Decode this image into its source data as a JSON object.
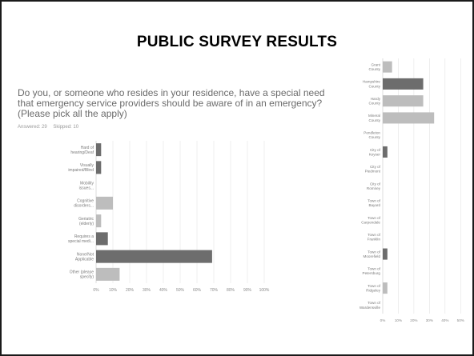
{
  "slide": {
    "title": "PUBLIC SURVEY RESULTS",
    "question": "Do you, or someone who resides in your residence, have a special need that emergency service providers should be aware of in an emergency? (Please pick all the apply)",
    "answered": "Answered: 29",
    "skipped": "Skipped: 10"
  },
  "chart_data": [
    {
      "type": "bar",
      "orientation": "horizontal",
      "categories": [
        "Hard of hearing/Deaf",
        "Visually impaired/Blind",
        "Mobility issues...",
        "Cognitive disorders...",
        "Geriatric (elderly)",
        "Requires a special medi...",
        "None/Not Applicable",
        "Other (please specify)"
      ],
      "values": [
        3,
        3,
        0,
        10,
        3,
        7,
        69,
        14
      ],
      "bar_colors": [
        "#6d6d6d",
        "#6d6d6d",
        "#6d6d6d",
        "#bdbdbd",
        "#bdbdbd",
        "#6d6d6d",
        "#6d6d6d",
        "#bdbdbd"
      ],
      "xticks": [
        "0%",
        "10%",
        "20%",
        "30%",
        "40%",
        "50%",
        "60%",
        "70%",
        "80%",
        "90%",
        "100%"
      ],
      "xlim": [
        0,
        100
      ],
      "grid": true
    },
    {
      "type": "bar",
      "orientation": "horizontal",
      "categories": [
        "Grant County",
        "Hampshire County",
        "Hardy County",
        "Mineral County",
        "Pendleton County",
        "City of Keyser",
        "City of Piedmont",
        "City of Romney",
        "Town of Bayard",
        "Town of Carpendale",
        "Town of Franklin",
        "Town of Moorefield",
        "Town of Petersburg",
        "Town of Ridgeley",
        "Town of Wardensville"
      ],
      "values": [
        6,
        26,
        26,
        33,
        0,
        3,
        0,
        0,
        0,
        0,
        0,
        3,
        0,
        3,
        0
      ],
      "bar_colors": [
        "#bdbdbd",
        "#6d6d6d",
        "#bdbdbd",
        "#bdbdbd",
        "#6d6d6d",
        "#6d6d6d",
        "#6d6d6d",
        "#6d6d6d",
        "#6d6d6d",
        "#6d6d6d",
        "#6d6d6d",
        "#6d6d6d",
        "#bdbdbd",
        "#bdbdbd",
        "#6d6d6d"
      ],
      "xticks": [
        "0%",
        "10%",
        "20%",
        "30%",
        "40%",
        "50%"
      ],
      "xlim": [
        0,
        55
      ],
      "grid": true
    }
  ]
}
